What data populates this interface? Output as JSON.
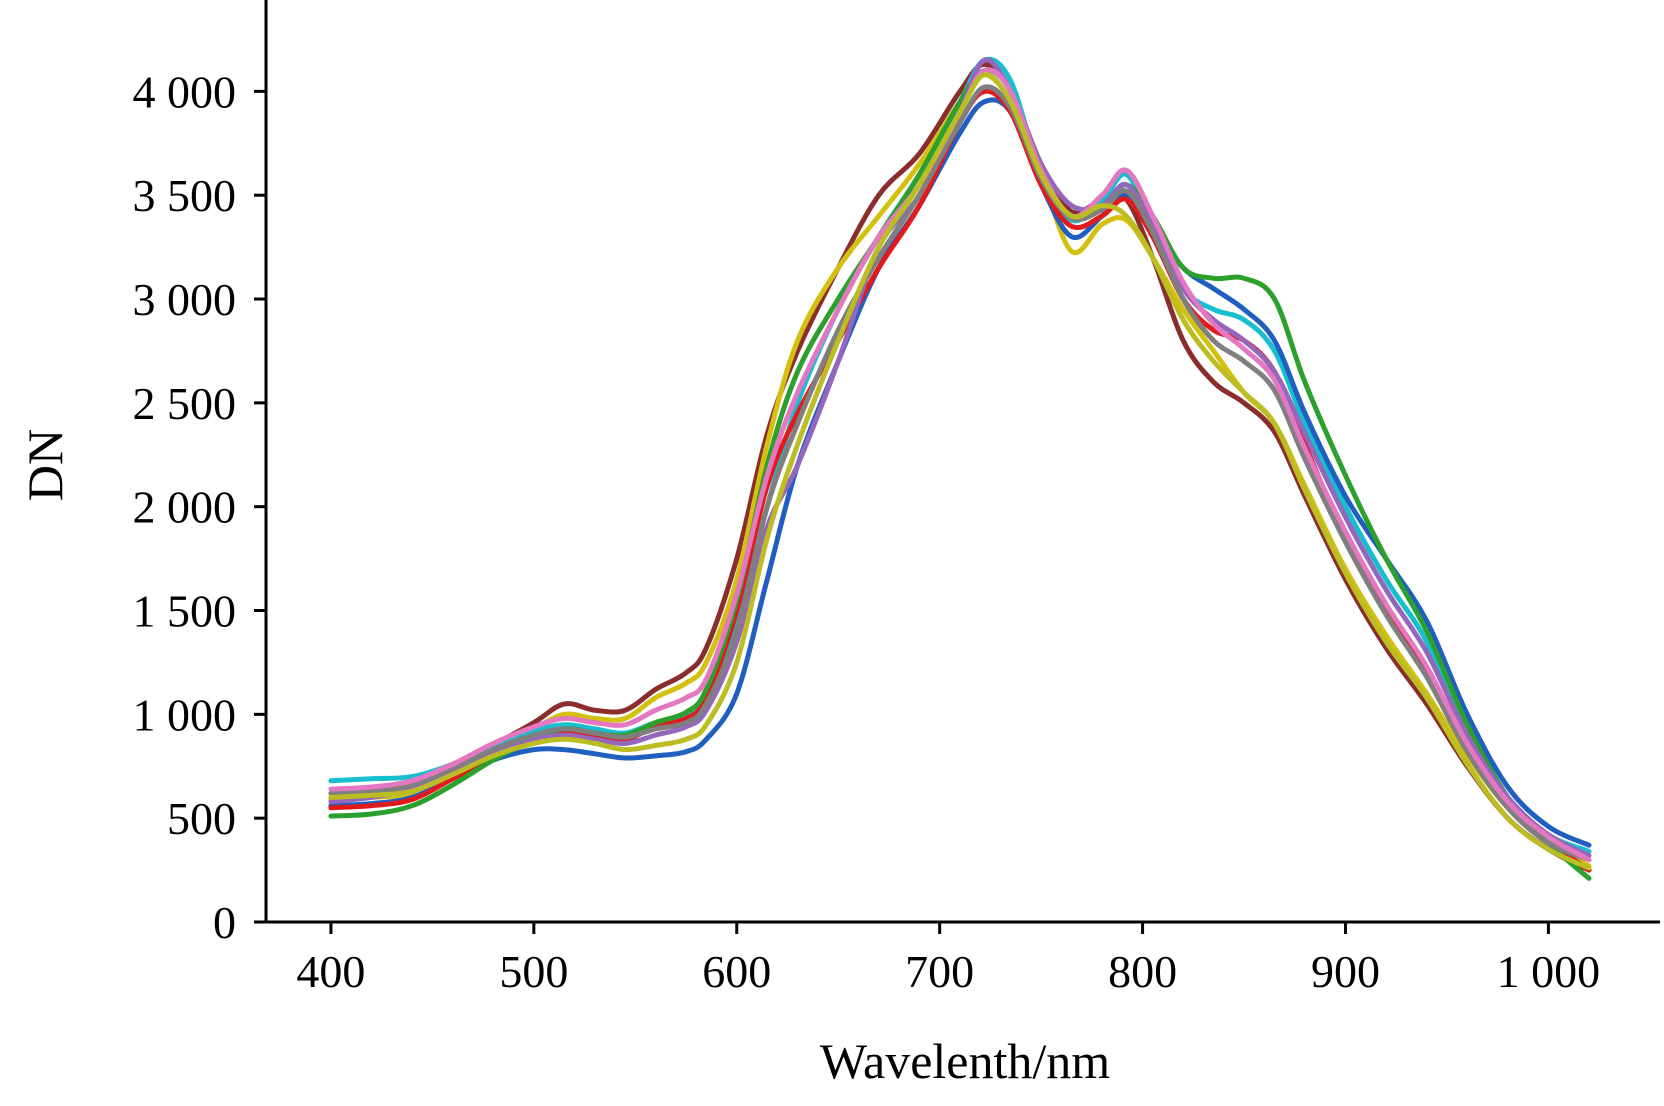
{
  "chart_data": {
    "type": "line",
    "title": "",
    "xlabel": "Wavelenth/nm",
    "ylabel": "DN",
    "xlim": [
      368,
      1055
    ],
    "ylim": [
      0,
      4440
    ],
    "grid": false,
    "legend": "none",
    "x_ticks": [
      {
        "value": 400,
        "label": "400"
      },
      {
        "value": 500,
        "label": "500"
      },
      {
        "value": 600,
        "label": "600"
      },
      {
        "value": 700,
        "label": "700"
      },
      {
        "value": 800,
        "label": "800"
      },
      {
        "value": 900,
        "label": "900"
      },
      {
        "value": 1000,
        "label": "1 000"
      }
    ],
    "y_ticks": [
      {
        "value": 0,
        "label": "0"
      },
      {
        "value": 500,
        "label": "500"
      },
      {
        "value": 1000,
        "label": "1 000"
      },
      {
        "value": 1500,
        "label": "1 500"
      },
      {
        "value": 2000,
        "label": "2 000"
      },
      {
        "value": 2500,
        "label": "2 500"
      },
      {
        "value": 3000,
        "label": "3 000"
      },
      {
        "value": 3500,
        "label": "3 500"
      },
      {
        "value": 4000,
        "label": "4 000"
      }
    ],
    "x": [
      400,
      420,
      440,
      460,
      480,
      500,
      515,
      530,
      545,
      560,
      575,
      585,
      600,
      615,
      630,
      650,
      670,
      690,
      710,
      722,
      735,
      750,
      765,
      780,
      792,
      805,
      820,
      835,
      850,
      865,
      880,
      900,
      920,
      940,
      960,
      980,
      1000,
      1020
    ],
    "series": [
      {
        "color": "#8b2d2d",
        "values": [
          600,
          610,
          640,
          730,
          850,
          960,
          1050,
          1020,
          1020,
          1120,
          1200,
          1320,
          1750,
          2350,
          2750,
          3150,
          3500,
          3700,
          4000,
          4130,
          4000,
          3650,
          3420,
          3480,
          3480,
          3200,
          2800,
          2600,
          2500,
          2360,
          2050,
          1650,
          1320,
          1050,
          750,
          500,
          350,
          250
        ]
      },
      {
        "color": "#d4c00e",
        "values": [
          590,
          600,
          620,
          720,
          830,
          930,
          1000,
          980,
          980,
          1080,
          1150,
          1250,
          1650,
          2300,
          2800,
          3150,
          3400,
          3650,
          3950,
          4080,
          3950,
          3600,
          3230,
          3360,
          3380,
          3200,
          2950,
          2750,
          2550,
          2400,
          2100,
          1700,
          1380,
          1100,
          800,
          550,
          380,
          270
        ]
      },
      {
        "color": "#17becf",
        "values": [
          680,
          690,
          700,
          760,
          850,
          920,
          950,
          930,
          910,
          960,
          990,
          1080,
          1450,
          2000,
          2500,
          2950,
          3300,
          3600,
          3950,
          4150,
          4050,
          3600,
          3380,
          3470,
          3600,
          3350,
          3050,
          2950,
          2900,
          2750,
          2400,
          2000,
          1650,
          1350,
          900,
          600,
          420,
          340
        ]
      },
      {
        "color": "#1f5fbf",
        "values": [
          560,
          570,
          600,
          690,
          780,
          830,
          830,
          810,
          790,
          800,
          820,
          880,
          1100,
          1650,
          2200,
          2700,
          3150,
          3450,
          3800,
          3950,
          3900,
          3550,
          3300,
          3400,
          3500,
          3350,
          3150,
          3050,
          2950,
          2800,
          2450,
          2050,
          1750,
          1450,
          1000,
          650,
          460,
          370
        ]
      },
      {
        "color": "#e31a1c",
        "values": [
          550,
          560,
          590,
          690,
          800,
          880,
          920,
          900,
          880,
          940,
          980,
          1080,
          1500,
          2100,
          2450,
          2800,
          3150,
          3450,
          3850,
          4000,
          3900,
          3550,
          3350,
          3400,
          3480,
          3300,
          3000,
          2850,
          2800,
          2650,
          2300,
          1850,
          1500,
          1200,
          850,
          570,
          390,
          250
        ]
      },
      {
        "color": "#2ca02c",
        "values": [
          510,
          520,
          560,
          660,
          780,
          880,
          930,
          910,
          900,
          960,
          1010,
          1120,
          1550,
          2200,
          2650,
          3000,
          3300,
          3600,
          3950,
          4100,
          4000,
          3600,
          3400,
          3450,
          3550,
          3400,
          3150,
          3100,
          3100,
          3000,
          2600,
          2150,
          1750,
          1400,
          950,
          600,
          380,
          210
        ]
      },
      {
        "color": "#9467bd",
        "values": [
          580,
          600,
          640,
          720,
          820,
          880,
          900,
          880,
          860,
          900,
          940,
          1020,
          1350,
          1900,
          2200,
          2700,
          3250,
          3500,
          3900,
          4150,
          4000,
          3650,
          3450,
          3450,
          3550,
          3350,
          3050,
          2900,
          2800,
          2650,
          2350,
          1950,
          1600,
          1300,
          900,
          600,
          420,
          320
        ]
      },
      {
        "color": "#7f7f7f",
        "values": [
          620,
          630,
          660,
          740,
          830,
          900,
          930,
          910,
          890,
          930,
          960,
          1050,
          1400,
          2000,
          2400,
          2850,
          3200,
          3500,
          3850,
          4020,
          3920,
          3580,
          3390,
          3430,
          3520,
          3320,
          3000,
          2800,
          2700,
          2560,
          2230,
          1830,
          1480,
          1180,
          820,
          550,
          380,
          300
        ]
      },
      {
        "color": "#e377c2",
        "values": [
          640,
          650,
          680,
          760,
          860,
          940,
          980,
          960,
          950,
          1020,
          1080,
          1170,
          1580,
          2150,
          2550,
          2950,
          3300,
          3550,
          3900,
          4100,
          4000,
          3620,
          3400,
          3500,
          3620,
          3400,
          3080,
          2880,
          2760,
          2610,
          2280,
          1880,
          1530,
          1230,
          860,
          580,
          410,
          300
        ]
      },
      {
        "color": "#bcbd22",
        "values": [
          600,
          610,
          630,
          710,
          800,
          860,
          880,
          860,
          830,
          850,
          880,
          950,
          1250,
          1850,
          2300,
          2800,
          3250,
          3550,
          3900,
          4080,
          3950,
          3600,
          3400,
          3450,
          3400,
          3200,
          2900,
          2700,
          2550,
          2400,
          2080,
          1680,
          1350,
          1080,
          760,
          500,
          350,
          260
        ]
      }
    ]
  }
}
